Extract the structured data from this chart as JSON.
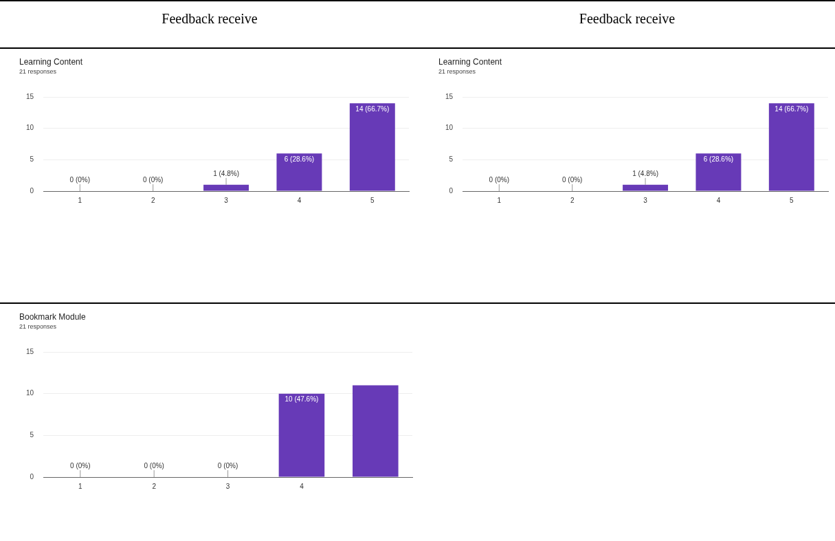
{
  "chart_data": [
    {
      "type": "bar",
      "title": "Learning Content",
      "subtitle": "21 responses",
      "annotations": [
        "Feedback receive"
      ],
      "categories": [
        "1",
        "2",
        "3",
        "4",
        "5"
      ],
      "values": [
        0,
        0,
        1,
        6,
        14
      ],
      "value_labels": [
        "0 (0%)",
        "0 (0%)",
        "1 (4.8%)",
        "6 (28.6%)",
        "14 (66.7%)"
      ],
      "color": "#673ab7",
      "ylim": [
        0,
        15
      ],
      "yticks": [
        0,
        5,
        10,
        15
      ],
      "grid": "y",
      "legend": false
    },
    {
      "type": "bar",
      "title": "Learning Content",
      "subtitle": "21 responses",
      "annotations": [
        "Feedback receive"
      ],
      "categories": [
        "1",
        "2",
        "3",
        "4",
        "5"
      ],
      "values": [
        0,
        0,
        1,
        6,
        14
      ],
      "value_labels": [
        "0 (0%)",
        "0 (0%)",
        "1 (4.8%)",
        "6 (28.6%)",
        "14 (66.7%)"
      ],
      "color": "#673ab7",
      "ylim": [
        0,
        15
      ],
      "yticks": [
        0,
        5,
        10,
        15
      ],
      "grid": "y",
      "legend": false
    },
    {
      "type": "bar",
      "title": "Bookmark Module",
      "subtitle": "21 responses",
      "categories": [
        "1",
        "2",
        "3",
        "4",
        null
      ],
      "values": [
        0,
        0,
        0,
        10,
        11
      ],
      "value_labels": [
        "0 (0%)",
        "0 (0%)",
        "0 (0%)",
        "10 (47.6%)",
        null
      ],
      "color": "#673ab7",
      "ylim": [
        0,
        15
      ],
      "yticks": [
        0,
        5,
        10,
        15
      ],
      "grid": "y",
      "legend": false
    }
  ]
}
